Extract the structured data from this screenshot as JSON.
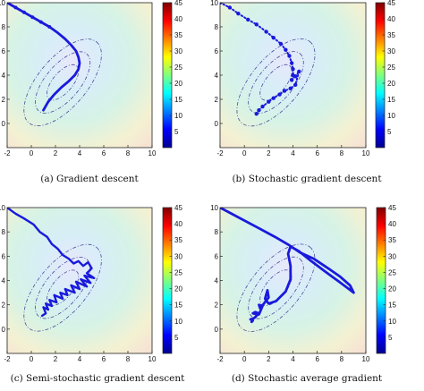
{
  "colors": {
    "path": "#1a1adc",
    "contour": "#4a4a9a",
    "colorbar_stops": [
      "#00008f",
      "#0000ff",
      "#007fff",
      "#00ffff",
      "#7fff7f",
      "#ffff00",
      "#ff7f00",
      "#ff0000",
      "#7f0000"
    ],
    "background_stops": [
      "#e8e8fb",
      "#d7eef7",
      "#d6f3e6",
      "#f4f1d2",
      "#f7dcd4"
    ]
  },
  "chart_data": [
    {
      "type": "line",
      "subtype": "contour-with-optimization-path",
      "caption": "(a) Gradient descent",
      "xlim": [
        -2,
        10
      ],
      "ylim": [
        -2,
        10
      ],
      "xticks": [
        "-2",
        "0",
        "2",
        "4",
        "6",
        "8",
        "10"
      ],
      "yticks": [
        "0",
        "2",
        "4",
        "6",
        "8",
        "10"
      ],
      "colorbar": {
        "range": [
          0,
          45
        ],
        "ticks": [
          "5",
          "10",
          "15",
          "20",
          "25",
          "30",
          "35",
          "40",
          "45"
        ]
      },
      "contour_levels": [
        1,
        3,
        6
      ],
      "path": {
        "x": [
          -2.0,
          -1.3,
          -0.6,
          0.1,
          0.8,
          1.5,
          2.2,
          2.8,
          3.3,
          3.7,
          3.9,
          4.0,
          3.9,
          3.6,
          3.1,
          2.5,
          1.9,
          1.4,
          1.0
        ],
        "y": [
          10.0,
          9.6,
          9.2,
          8.8,
          8.4,
          8.0,
          7.5,
          7.0,
          6.5,
          6.0,
          5.5,
          5.0,
          4.5,
          4.0,
          3.5,
          3.0,
          2.4,
          1.8,
          1.1
        ]
      }
    },
    {
      "type": "scatter",
      "subtype": "contour-with-optimization-path",
      "caption": "(b) Stochastic gradient descent",
      "xlim": [
        -2,
        10
      ],
      "ylim": [
        -2,
        10
      ],
      "xticks": [
        "-2",
        "0",
        "2",
        "4",
        "6",
        "8",
        "10"
      ],
      "yticks": [
        "0",
        "2",
        "4",
        "6",
        "8",
        "10"
      ],
      "colorbar": {
        "range": [
          0,
          45
        ],
        "ticks": [
          "5",
          "10",
          "15",
          "20",
          "25",
          "30",
          "35",
          "40",
          "45"
        ]
      },
      "contour_levels": [
        1,
        3,
        6
      ],
      "path": {
        "x": [
          -2.0,
          -1.2,
          -0.5,
          0.3,
          1.0,
          1.8,
          2.4,
          3.0,
          3.4,
          3.7,
          3.9,
          4.0,
          4.0,
          3.9,
          4.2,
          4.5,
          4.2,
          3.8,
          3.3,
          2.9,
          2.4,
          2.0,
          1.5,
          1.2,
          1.0
        ],
        "y": [
          10.0,
          9.6,
          9.1,
          8.6,
          8.2,
          7.6,
          7.1,
          6.6,
          6.1,
          5.6,
          5.0,
          4.5,
          4.0,
          3.6,
          3.9,
          4.3,
          3.2,
          2.9,
          2.7,
          2.4,
          2.1,
          1.8,
          1.4,
          1.1,
          0.8
        ]
      }
    },
    {
      "type": "line",
      "subtype": "contour-with-optimization-path",
      "caption": "(c) Semi-stochastic gradient descent",
      "xlim": [
        -2,
        10
      ],
      "ylim": [
        -2,
        10
      ],
      "xticks": [
        "-2",
        "0",
        "2",
        "4",
        "6",
        "8",
        "10"
      ],
      "yticks": [
        "0",
        "2",
        "4",
        "6",
        "8",
        "10"
      ],
      "colorbar": {
        "range": [
          0,
          45
        ],
        "ticks": [
          "5",
          "10",
          "15",
          "20",
          "25",
          "30",
          "35",
          "40",
          "45"
        ]
      },
      "contour_levels": [
        1,
        3,
        6
      ],
      "path": {
        "x": [
          -2.0,
          -1.3,
          -0.6,
          0.2,
          0.7,
          1.3,
          1.7,
          2.2,
          2.6,
          3.1,
          3.5,
          3.9,
          4.3,
          4.7,
          5.0,
          4.6,
          5.2,
          4.4,
          4.9,
          4.1,
          4.6,
          3.7,
          4.0,
          3.3,
          3.6,
          2.8,
          3.0,
          2.4,
          2.6,
          1.9,
          2.1,
          1.5,
          1.7,
          1.2,
          1.4,
          1.0,
          1.2,
          0.9
        ],
        "y": [
          10.0,
          9.5,
          9.1,
          8.6,
          8.0,
          7.6,
          7.0,
          6.6,
          6.1,
          5.8,
          5.4,
          5.6,
          5.2,
          5.5,
          5.0,
          4.6,
          4.2,
          4.4,
          3.8,
          4.1,
          3.5,
          3.9,
          3.3,
          3.6,
          3.0,
          3.3,
          2.8,
          3.0,
          2.5,
          2.8,
          2.2,
          2.4,
          1.9,
          2.1,
          1.6,
          1.8,
          1.3,
          1.1
        ]
      }
    },
    {
      "type": "line",
      "subtype": "contour-with-optimization-path",
      "caption": "(d) Stochastic average gradient",
      "xlim": [
        -2,
        10
      ],
      "ylim": [
        -2,
        10
      ],
      "xticks": [
        "-2",
        "0",
        "2",
        "4",
        "6",
        "8",
        "10"
      ],
      "yticks": [
        "0",
        "2",
        "4",
        "6",
        "8",
        "10"
      ],
      "colorbar": {
        "range": [
          0,
          45
        ],
        "ticks": [
          "5",
          "10",
          "15",
          "20",
          "25",
          "30",
          "35",
          "40",
          "45"
        ]
      },
      "contour_levels": [
        1,
        3,
        6
      ],
      "path": {
        "x": [
          -2.0,
          -0.5,
          1.0,
          2.5,
          3.7,
          4.6,
          5.7,
          6.9,
          7.9,
          8.7,
          9.0,
          8.6,
          7.8,
          6.7,
          5.5,
          4.5,
          3.8,
          3.6,
          3.8,
          3.8,
          3.4,
          2.6,
          2.0,
          1.7,
          1.9,
          2.0,
          1.3,
          1.2,
          1.5,
          1.2,
          0.7,
          0.9,
          1.2,
          0.8,
          0.5,
          0.7,
          0.6
        ],
        "y": [
          10.0,
          9.2,
          8.4,
          7.6,
          6.9,
          6.3,
          5.8,
          5.0,
          4.3,
          3.6,
          3.0,
          3.3,
          3.9,
          4.7,
          5.6,
          6.4,
          6.8,
          6.2,
          5.2,
          4.1,
          3.1,
          2.3,
          2.1,
          2.5,
          3.2,
          2.6,
          1.7,
          2.0,
          1.9,
          1.2,
          1.3,
          1.4,
          1.3,
          0.9,
          0.8,
          0.7,
          0.6
        ]
      }
    }
  ]
}
